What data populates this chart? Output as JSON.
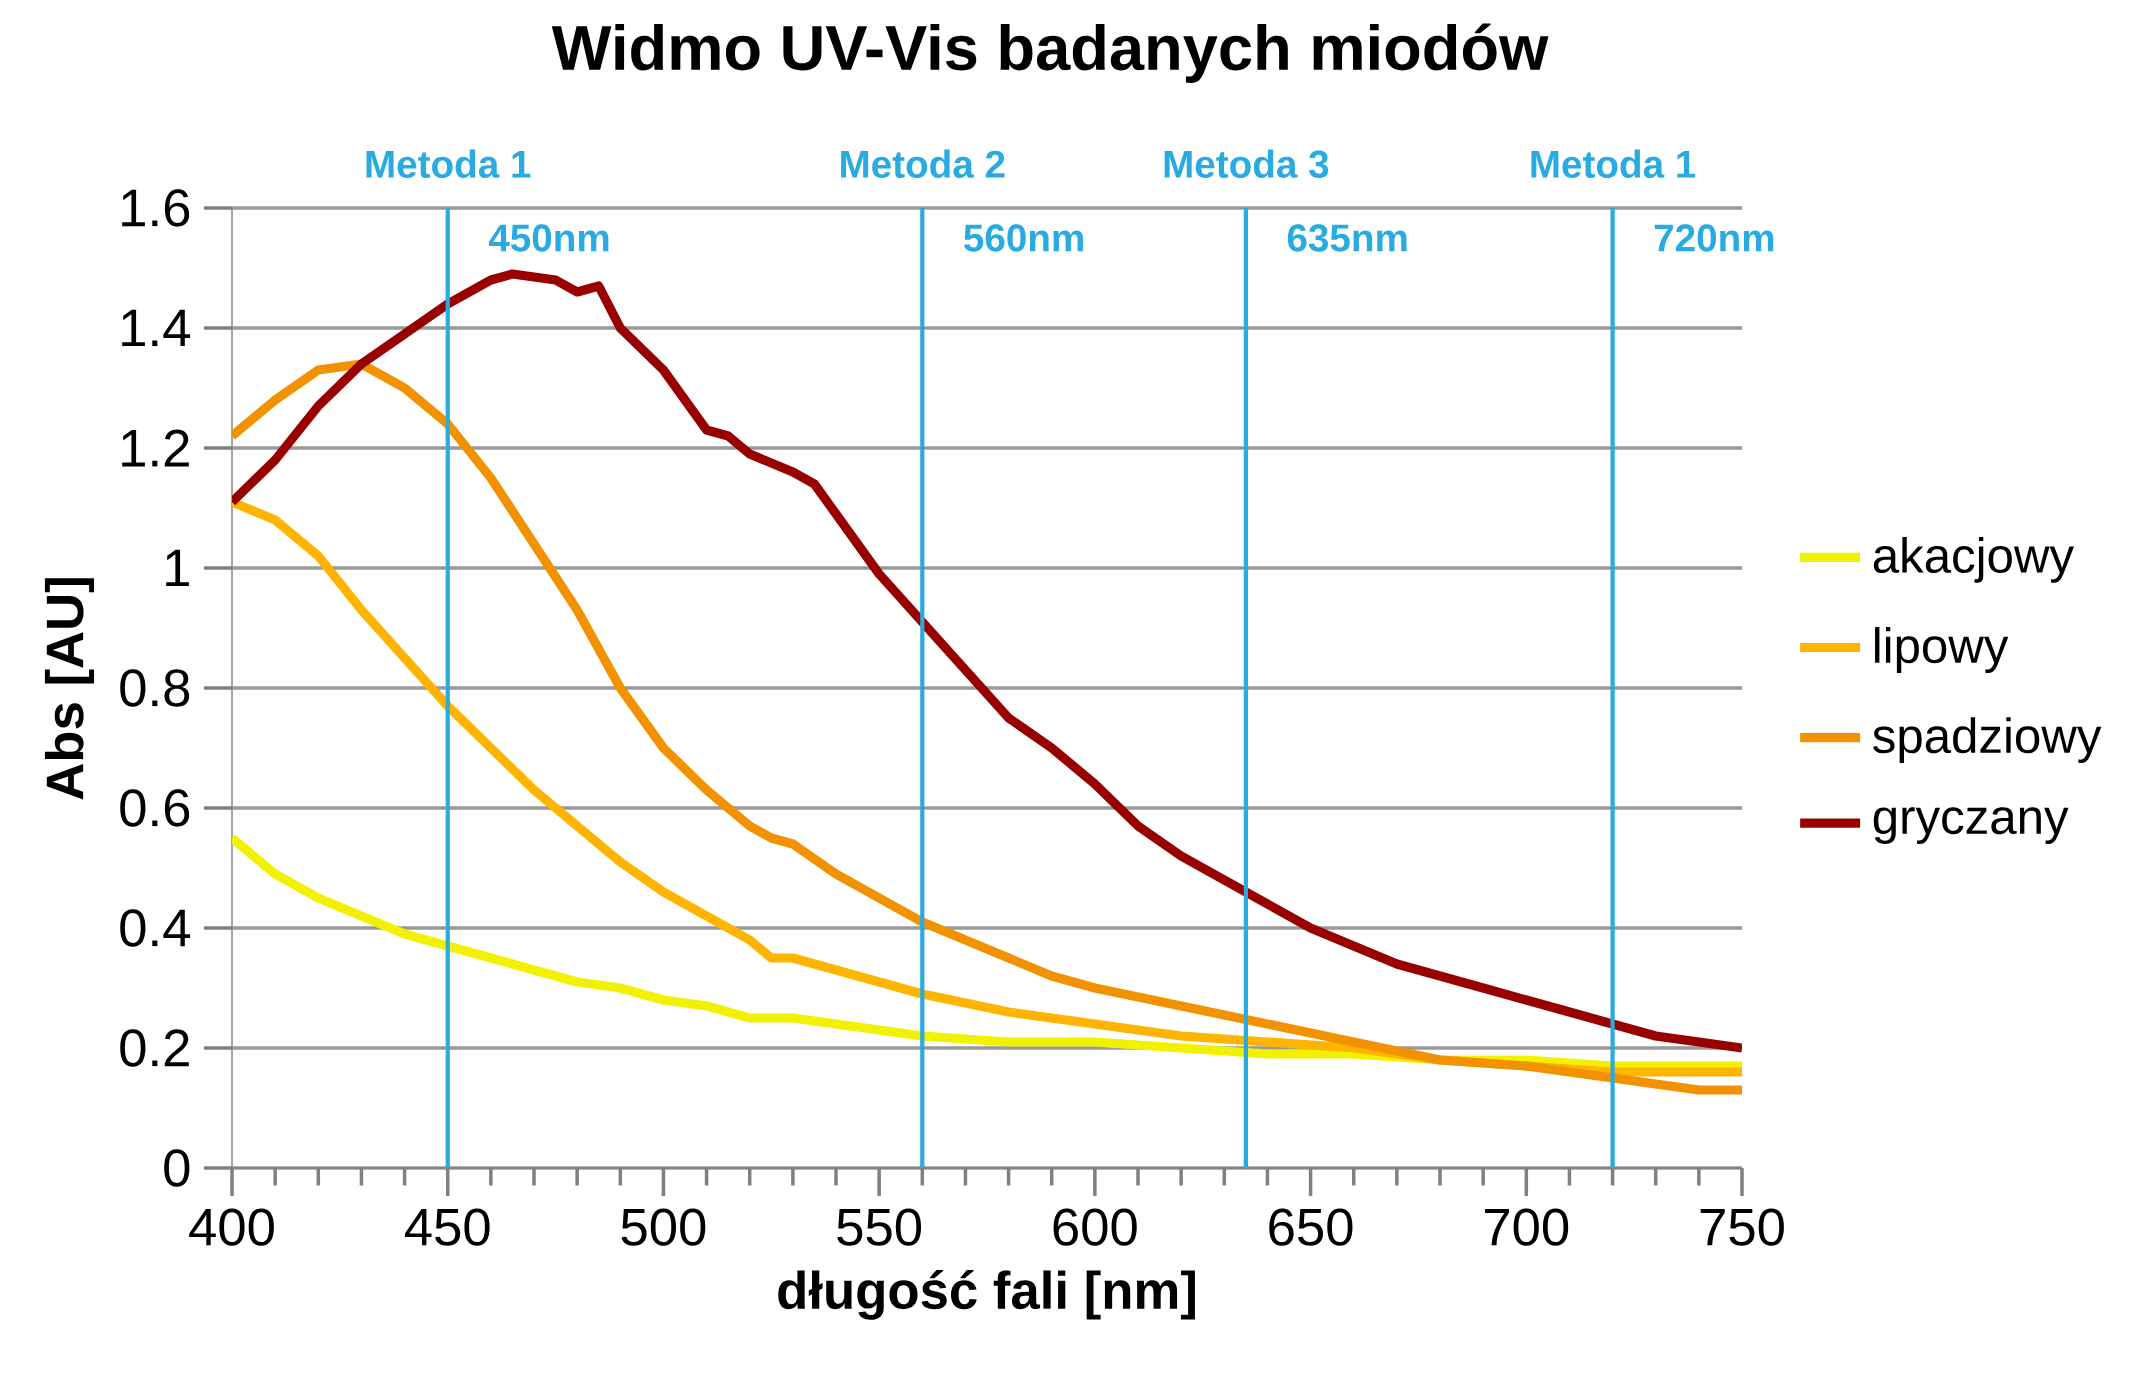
{
  "chart_data": {
    "type": "line",
    "title": "Widmo UV-Vis badanych miodów",
    "xlabel": "długość fali [nm]",
    "ylabel": "Abs [AU]",
    "xlim": [
      400,
      750
    ],
    "xticks": [
      400,
      450,
      500,
      550,
      600,
      650,
      700,
      750
    ],
    "ylim": [
      0,
      1.6
    ],
    "yticks": [
      0,
      0.2,
      0.4,
      0.6,
      0.8,
      1,
      1.2,
      1.4,
      1.6
    ],
    "grid": "y",
    "legend": "right",
    "series": [
      {
        "name": "akacjowy",
        "color": "#f2f200",
        "x": [
          400,
          410,
          420,
          430,
          440,
          450,
          460,
          470,
          480,
          490,
          500,
          510,
          520,
          530,
          540,
          560,
          580,
          600,
          620,
          640,
          660,
          680,
          700,
          720,
          750
        ],
        "values": [
          0.55,
          0.49,
          0.45,
          0.42,
          0.39,
          0.37,
          0.35,
          0.33,
          0.31,
          0.3,
          0.28,
          0.27,
          0.25,
          0.25,
          0.24,
          0.22,
          0.21,
          0.21,
          0.2,
          0.19,
          0.19,
          0.18,
          0.18,
          0.17,
          0.17
        ]
      },
      {
        "name": "lipowy",
        "color": "#ffb400",
        "x": [
          400,
          410,
          420,
          430,
          440,
          450,
          460,
          470,
          480,
          490,
          500,
          510,
          520,
          525,
          530,
          540,
          550,
          560,
          580,
          600,
          620,
          640,
          660,
          680,
          700,
          720,
          750
        ],
        "values": [
          1.11,
          1.08,
          1.02,
          0.93,
          0.85,
          0.77,
          0.7,
          0.63,
          0.57,
          0.51,
          0.46,
          0.42,
          0.38,
          0.35,
          0.35,
          0.33,
          0.31,
          0.29,
          0.26,
          0.24,
          0.22,
          0.21,
          0.2,
          0.18,
          0.17,
          0.16,
          0.16
        ]
      },
      {
        "name": "spadziowy",
        "color": "#f39200",
        "x": [
          400,
          410,
          420,
          430,
          440,
          450,
          460,
          470,
          480,
          490,
          500,
          510,
          520,
          525,
          530,
          540,
          550,
          560,
          570,
          580,
          590,
          600,
          620,
          640,
          660,
          680,
          700,
          720,
          740,
          750
        ],
        "values": [
          1.22,
          1.28,
          1.33,
          1.34,
          1.3,
          1.24,
          1.15,
          1.04,
          0.93,
          0.8,
          0.7,
          0.63,
          0.57,
          0.55,
          0.54,
          0.49,
          0.45,
          0.41,
          0.38,
          0.35,
          0.32,
          0.3,
          0.27,
          0.24,
          0.21,
          0.18,
          0.17,
          0.15,
          0.13,
          0.13
        ]
      },
      {
        "name": "gryczany",
        "color": "#990000",
        "x": [
          400,
          410,
          420,
          430,
          440,
          450,
          460,
          465,
          475,
          480,
          485,
          490,
          500,
          510,
          515,
          520,
          530,
          535,
          540,
          550,
          560,
          570,
          580,
          590,
          600,
          610,
          620,
          630,
          640,
          650,
          660,
          670,
          680,
          690,
          700,
          710,
          720,
          730,
          740,
          750
        ],
        "values": [
          1.11,
          1.18,
          1.27,
          1.34,
          1.39,
          1.44,
          1.48,
          1.49,
          1.48,
          1.46,
          1.47,
          1.4,
          1.33,
          1.23,
          1.22,
          1.19,
          1.16,
          1.14,
          1.09,
          0.99,
          0.91,
          0.83,
          0.75,
          0.7,
          0.64,
          0.57,
          0.52,
          0.48,
          0.44,
          0.4,
          0.37,
          0.34,
          0.32,
          0.3,
          0.28,
          0.26,
          0.24,
          0.22,
          0.21,
          0.2
        ]
      }
    ],
    "ref_lines": [
      {
        "axis": "x",
        "value": 450,
        "label": "Metoda 1",
        "color": "#29abe2"
      },
      {
        "axis": "x",
        "value": 560,
        "label": "Metoda 2",
        "color": "#29abe2"
      },
      {
        "axis": "x",
        "value": 635,
        "label": "Metoda 3",
        "color": "#29abe2"
      },
      {
        "axis": "x",
        "value": 720,
        "label": "Metoda 1",
        "color": "#29abe2"
      }
    ],
    "annotations": [
      {
        "text": "450nm",
        "x": 450,
        "y": 1.55
      },
      {
        "text": "560nm",
        "x": 560,
        "y": 1.55
      },
      {
        "text": "635nm",
        "x": 635,
        "y": 1.55
      },
      {
        "text": "720nm",
        "x": 720,
        "y": 1.55
      }
    ]
  }
}
